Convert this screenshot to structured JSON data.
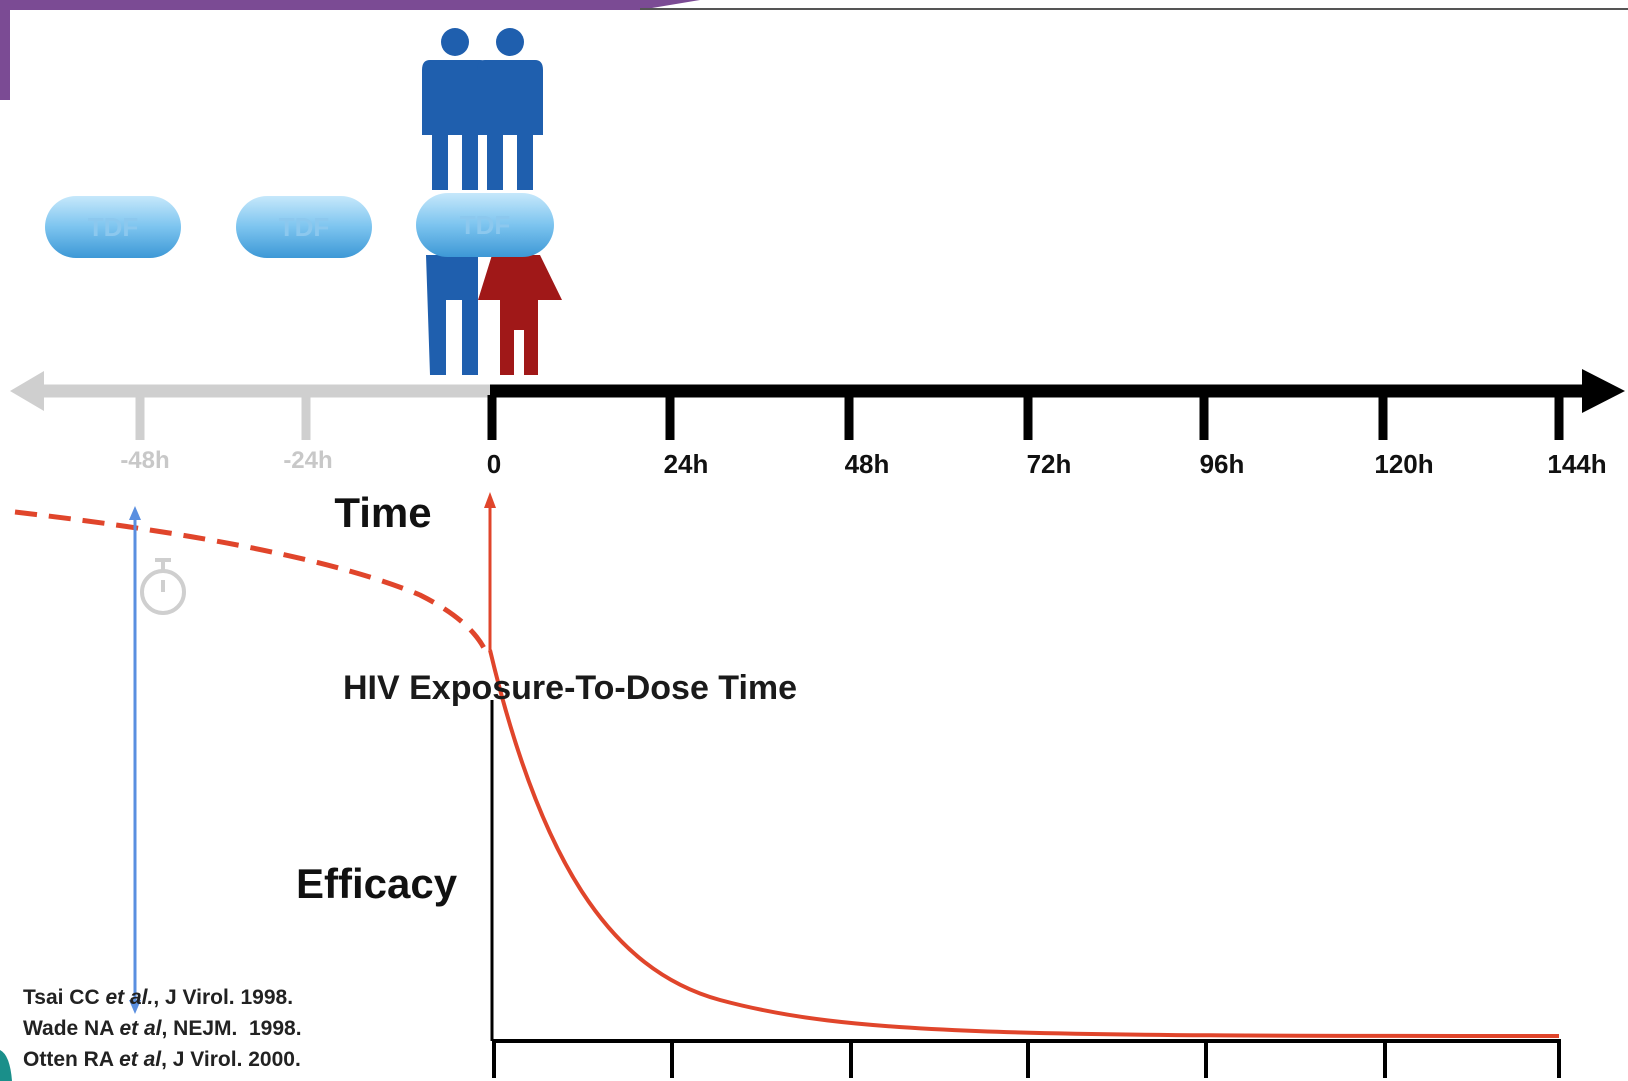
{
  "pills": [
    "TDF",
    "TDF",
    "TDF"
  ],
  "timeline": {
    "past_ticks": [
      "-48h",
      "-24h"
    ],
    "future_ticks": [
      "0",
      "24h",
      "48h",
      "72h",
      "96h",
      "120h",
      "144h"
    ],
    "label": "Time"
  },
  "curve_label": "HIV Exposure-To-Dose Time",
  "y_label": "Efficacy",
  "references": [
    [
      "Tsai CC ",
      "et al.",
      ", J Virol. 1998."
    ],
    [
      "Wade NA ",
      "et al",
      ", NEJM.  1998."
    ],
    [
      "Otten RA ",
      "et al",
      ", J Virol. 2000."
    ]
  ]
}
